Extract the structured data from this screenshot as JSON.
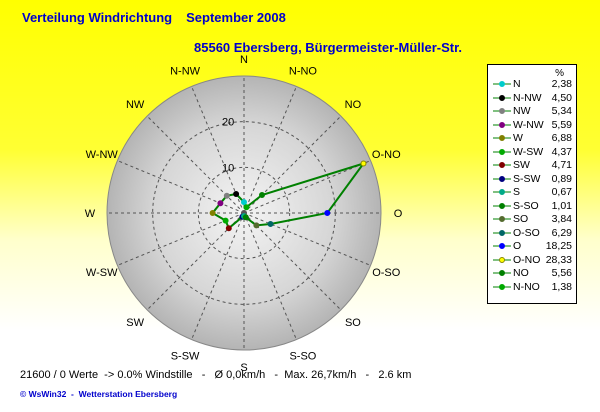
{
  "header": {
    "title": "Verteilung Windrichtung",
    "period": "September 2008",
    "station": "85560 Ebersberg, Bürgermeister-Müller-Str."
  },
  "legend": {
    "unit": "%"
  },
  "footer": {
    "stats": "21600 / 0 Werte  -> 0.0% Windstille   -   Ø 0,0km/h   -  Max. 26,7km/h   -   2.6 km",
    "credit": "© WsWin32  -  Wetterstation Ebersberg"
  },
  "chart_data": {
    "type": "radar",
    "title": "Verteilung Windrichtung",
    "ring_labels": [
      "10",
      "20"
    ],
    "range": [
      0,
      30
    ],
    "directions": [
      "N",
      "N-NW",
      "NW",
      "W-NW",
      "W",
      "W-SW",
      "SW",
      "S-SW",
      "S",
      "S-SO",
      "SO",
      "O-SO",
      "O",
      "O-NO",
      "NO",
      "N-NO"
    ],
    "angles": [
      0,
      337.5,
      315,
      292.5,
      270,
      247.5,
      225,
      202.5,
      180,
      157.5,
      135,
      112.5,
      90,
      67.5,
      45,
      22.5
    ],
    "values": [
      2.38,
      4.5,
      5.34,
      5.59,
      6.88,
      4.37,
      4.71,
      0.89,
      0.67,
      1.01,
      3.84,
      6.29,
      18.25,
      28.33,
      5.56,
      1.38
    ],
    "colors": [
      "#00cccc",
      "#000000",
      "#808080",
      "#800080",
      "#808000",
      "#00aa00",
      "#800000",
      "#000080",
      "#00aa88",
      "#008000",
      "#556b2f",
      "#006666",
      "#0000ff",
      "#ffff00",
      "#008000",
      "#00aa00"
    ],
    "line_color": "#008000"
  }
}
